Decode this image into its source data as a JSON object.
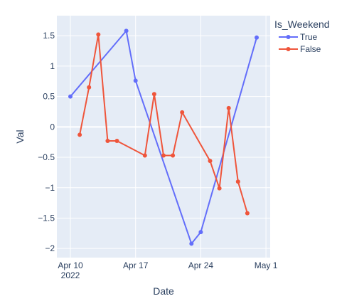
{
  "chart_data": {
    "type": "line",
    "xlabel": "Date",
    "ylabel": "Val",
    "xlim": [
      "2022-04-09",
      "2022-04-30"
    ],
    "ylim": [
      -2.15,
      1.83
    ],
    "x_ticks": [
      {
        "date": "2022-04-10",
        "label": "Apr 10",
        "sublabel": "2022"
      },
      {
        "date": "2022-04-17",
        "label": "Apr 17"
      },
      {
        "date": "2022-04-24",
        "label": "Apr 24"
      },
      {
        "date": "2022-05-01",
        "label": "May 1"
      }
    ],
    "y_ticks": [
      {
        "value": 1.5,
        "label": "1.5"
      },
      {
        "value": 1,
        "label": "1"
      },
      {
        "value": 0.5,
        "label": "0.5"
      },
      {
        "value": 0,
        "label": "0"
      },
      {
        "value": -0.5,
        "label": "−0.5"
      },
      {
        "value": -1,
        "label": "−1"
      },
      {
        "value": -1.5,
        "label": "−1.5"
      },
      {
        "value": -2,
        "label": "−2"
      }
    ],
    "legend": {
      "title": "Is_Weekend",
      "placement": "top-right"
    },
    "plot_bg": "#e5ecf6",
    "grid": true,
    "series": [
      {
        "name": "True",
        "color": "#636efa",
        "points": [
          {
            "x": "2022-04-10",
            "y": 0.5
          },
          {
            "x": "2022-04-16",
            "y": 1.58
          },
          {
            "x": "2022-04-17",
            "y": 0.76
          },
          {
            "x": "2022-04-23",
            "y": -1.92
          },
          {
            "x": "2022-04-24",
            "y": -1.73
          },
          {
            "x": "2022-04-30",
            "y": 1.47
          }
        ]
      },
      {
        "name": "False",
        "color": "#ef553b",
        "points": [
          {
            "x": "2022-04-11",
            "y": -0.13
          },
          {
            "x": "2022-04-12",
            "y": 0.65
          },
          {
            "x": "2022-04-13",
            "y": 1.52
          },
          {
            "x": "2022-04-14",
            "y": -0.23
          },
          {
            "x": "2022-04-15",
            "y": -0.23
          },
          {
            "x": "2022-04-18",
            "y": -0.47
          },
          {
            "x": "2022-04-19",
            "y": 0.54
          },
          {
            "x": "2022-04-20",
            "y": -0.47
          },
          {
            "x": "2022-04-21",
            "y": -0.47
          },
          {
            "x": "2022-04-22",
            "y": 0.24
          },
          {
            "x": "2022-04-25",
            "y": -0.56
          },
          {
            "x": "2022-04-26",
            "y": -1.01
          },
          {
            "x": "2022-04-27",
            "y": 0.31
          },
          {
            "x": "2022-04-28",
            "y": -0.9
          },
          {
            "x": "2022-04-29",
            "y": -1.42
          }
        ]
      }
    ]
  }
}
